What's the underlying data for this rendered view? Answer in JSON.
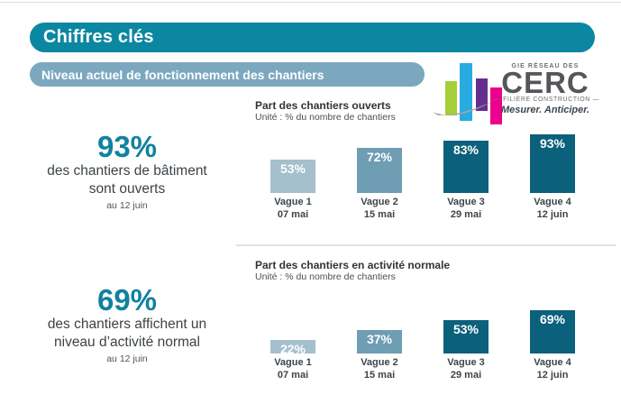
{
  "header": {
    "title": "Chiffres clés",
    "color": "#0c87a1"
  },
  "subheader": {
    "title": "Niveau actuel de fonctionnement des chantiers",
    "color": "#7ba8bf"
  },
  "logo": {
    "top_text": "GIE RÉSEAU DES",
    "name": "CERC",
    "bottom_text": "— FILIÈRE CONSTRUCTION —",
    "tagline": "Mesurer. Anticiper.",
    "colors": {
      "green": "#a6ce39",
      "cyan": "#29abe2",
      "purple": "#662d91",
      "magenta": "#ec008c",
      "swoosh": "#a7a5a3"
    }
  },
  "stats": [
    {
      "value": "93%",
      "line1": "des chantiers de bâtiment",
      "line2": "sont ouverts",
      "date": "au 12 juin"
    },
    {
      "value": "69%",
      "line1": "des chantiers affichent un",
      "line2": "niveau d’activité normal",
      "date": "au 12 juin"
    }
  ],
  "stats_value_color": "#1181a0",
  "chart_data": [
    {
      "type": "bar",
      "title": "Part des chantiers ouverts",
      "subtitle": "Unité : % du nombre de chantiers",
      "categories": [
        "Vague 1",
        "Vague 2",
        "Vague 3",
        "Vague 4"
      ],
      "category_dates": [
        "07 mai",
        "15 mai",
        "29 mai",
        "12 juin"
      ],
      "values": [
        53,
        72,
        83,
        93
      ],
      "value_labels": [
        "53%",
        "72%",
        "83%",
        "93%"
      ],
      "bar_colors": [
        "#a5bfcc",
        "#6e9db4",
        "#0b607b",
        "#0b607b"
      ],
      "ylim": [
        0,
        100
      ],
      "unit": "% du nombre de chantiers",
      "grid": false,
      "legend": false
    },
    {
      "type": "bar",
      "title": "Part des chantiers en activité normale",
      "subtitle": "Unité : % du nombre de chantiers",
      "categories": [
        "Vague 1",
        "Vague 2",
        "Vague 3",
        "Vague 4"
      ],
      "category_dates": [
        "07 mai",
        "15 mai",
        "29 mai",
        "12 juin"
      ],
      "values": [
        22,
        37,
        53,
        69
      ],
      "value_labels": [
        "22%",
        "37%",
        "53%",
        "69%"
      ],
      "bar_colors": [
        "#a5bfcc",
        "#6e9db4",
        "#0b607b",
        "#0b607b"
      ],
      "ylim": [
        0,
        100
      ],
      "unit": "% du nombre de chantiers",
      "grid": false,
      "legend": false
    }
  ]
}
